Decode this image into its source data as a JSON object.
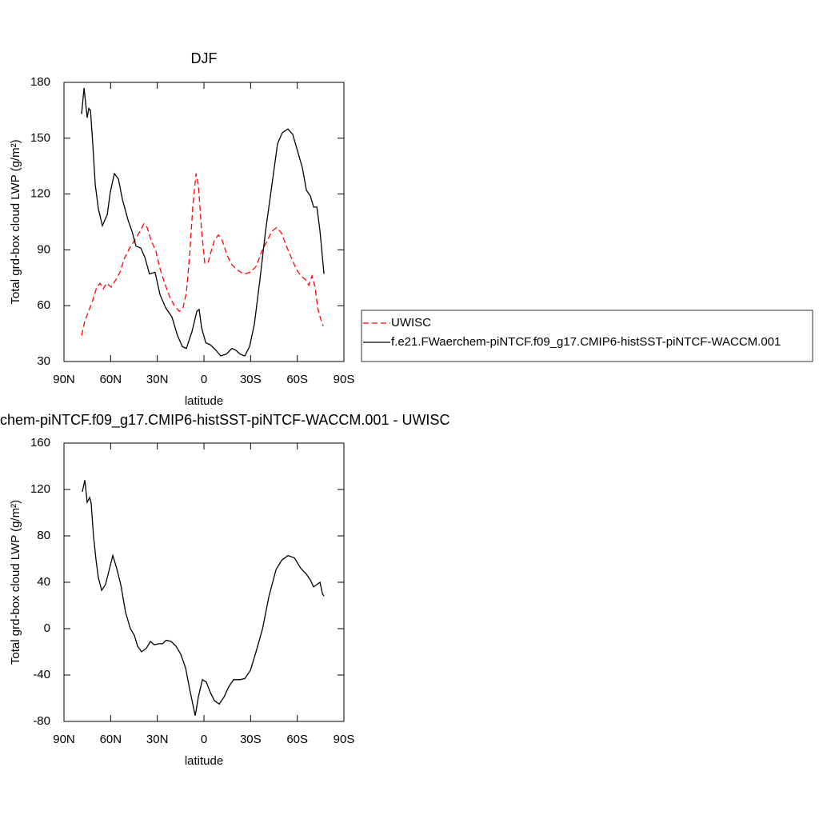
{
  "chart_data": [
    {
      "type": "line",
      "title": "DJF",
      "xlabel": "latitude",
      "ylabel": "Total grd-box cloud LWP (g/m²)",
      "xlim": [
        90,
        -90
      ],
      "xticks": [
        {
          "value": 90,
          "label": "90N"
        },
        {
          "value": 60,
          "label": "60N"
        },
        {
          "value": 30,
          "label": "30N"
        },
        0,
        {
          "value": -30,
          "label": "30S"
        },
        {
          "value": -60,
          "label": "60S"
        },
        {
          "value": -90,
          "label": "90S"
        }
      ],
      "ylim": [
        30,
        180
      ],
      "yticks": [
        30,
        60,
        90,
        120,
        150,
        180
      ],
      "legend": "right",
      "series": [
        {
          "name": "UWISC",
          "color": "#ff0000",
          "line_style": "dashed",
          "x": [
            78.7,
            76.6,
            74.6,
            71.5,
            68.9,
            66.8,
            64.8,
            62.7,
            59.6,
            56.6,
            54,
            51.4,
            47.8,
            44.7,
            41.1,
            38.6,
            36.5,
            33.9,
            30.8,
            28.3,
            25.2,
            22.1,
            19,
            15.9,
            13.4,
            11.3,
            9.2,
            7.2,
            5.1,
            3.6,
            1.5,
            -0.5,
            -2.6,
            -4.6,
            -6.7,
            -9.3,
            -11.8,
            -14.9,
            -18,
            -21.6,
            -25.7,
            -29.9,
            -33.5,
            -37.1,
            -40.1,
            -43.7,
            -46.8,
            -49.9,
            -53,
            -56.1,
            -59.2,
            -62.3,
            -65.3,
            -67.4,
            -69.5,
            -71.5,
            -73.1,
            -74.6,
            -76.7
          ],
          "values": [
            44,
            52,
            56,
            63,
            70,
            72,
            69,
            72,
            70,
            74,
            78,
            85,
            91,
            95,
            100,
            104,
            102,
            95,
            89,
            80,
            72,
            65,
            60,
            57,
            59,
            67,
            87,
            113,
            131,
            125,
            100,
            83,
            83,
            89,
            95,
            98,
            95,
            87,
            82,
            79,
            77,
            78,
            81,
            89,
            94,
            100,
            102,
            99,
            92,
            86,
            80,
            76,
            74,
            71,
            76,
            70,
            59,
            54,
            49
          ]
        },
        {
          "name": "f.e21.FWaerchem-piNTCF.f09_g17.CMIP6-histSST-piNTCF-WACCM.001",
          "color": "#000000",
          "line_style": "solid",
          "x": [
            78.7,
            77.1,
            75.1,
            74,
            73,
            71.5,
            69.9,
            67.9,
            65.3,
            62.2,
            60.2,
            57.6,
            55,
            52.4,
            48.8,
            46.3,
            43.7,
            40.6,
            38,
            35,
            31.4,
            28.3,
            24.7,
            20.6,
            17,
            13.9,
            11.3,
            7.7,
            4.6,
            3.1,
            1.5,
            -1.2,
            -4.1,
            -7.7,
            -10.8,
            -14.4,
            -18,
            -20.6,
            -23.2,
            -26.3,
            -29.3,
            -32.4,
            -36,
            -39.6,
            -43.7,
            -47.3,
            -50.4,
            -54,
            -57.1,
            -60.2,
            -63.3,
            -65.9,
            -68.4,
            -70.5,
            -72.6,
            -74.6,
            -77.2
          ],
          "values": [
            163,
            177,
            161,
            166,
            165,
            147,
            125,
            112,
            103,
            109,
            121,
            131,
            128,
            117,
            106,
            100,
            92,
            91,
            86,
            77,
            78,
            66,
            59,
            54,
            44,
            38,
            37,
            46,
            57,
            58,
            48,
            40,
            39,
            36,
            33,
            34,
            37,
            36,
            34,
            33,
            38,
            50,
            74,
            100,
            125,
            147,
            153,
            155,
            152,
            143,
            134,
            122,
            119,
            113,
            113,
            100,
            77
          ]
        }
      ]
    },
    {
      "type": "line",
      "title": "chem-piNTCF.f09_g17.CMIP6-histSST-piNTCF-WACCM.001 - UWISC",
      "xlabel": "latitude",
      "ylabel": "Total grd-box cloud LWP (g/m²)",
      "xlim": [
        90,
        -90
      ],
      "xticks": [
        {
          "value": 90,
          "label": "90N"
        },
        {
          "value": 60,
          "label": "60N"
        },
        {
          "value": 30,
          "label": "30N"
        },
        0,
        {
          "value": -30,
          "label": "30S"
        },
        {
          "value": -60,
          "label": "60S"
        },
        {
          "value": -90,
          "label": "90S"
        }
      ],
      "ylim": [
        -80,
        160
      ],
      "yticks": [
        -80,
        -40,
        0,
        40,
        80,
        120,
        160
      ],
      "color": "#000000",
      "x": [
        78.2,
        76.6,
        75.1,
        73.5,
        72.5,
        71,
        69.4,
        67.9,
        65.8,
        63.3,
        60.7,
        58.6,
        56.1,
        53.5,
        50.4,
        47.3,
        44.7,
        42.7,
        40.1,
        37.1,
        34.4,
        31.9,
        29.3,
        26.7,
        24.2,
        21.1,
        18,
        14.9,
        11.8,
        9.2,
        7.2,
        5.6,
        3.6,
        1,
        -1.5,
        -4.1,
        -6.7,
        -9.8,
        -12.9,
        -16,
        -19.1,
        -23.2,
        -26.3,
        -29.9,
        -33.5,
        -37.7,
        -41.8,
        -46.4,
        -50,
        -54,
        -58.2,
        -62.3,
        -65.9,
        -68.4,
        -70.5,
        -72.6,
        -74.6,
        -76.2,
        -77.2
      ],
      "values": [
        118,
        128,
        109,
        113,
        108,
        80,
        59,
        44,
        33,
        38,
        52,
        63,
        52,
        38,
        14,
        0,
        -6,
        -15,
        -20,
        -17,
        -11,
        -14,
        -13,
        -13,
        -10,
        -11,
        -15,
        -22,
        -34,
        -52,
        -65,
        -75,
        -59,
        -44,
        -46,
        -55,
        -62,
        -65,
        -59,
        -50,
        -44,
        -44,
        -43,
        -36,
        -20,
        0,
        28,
        51,
        59,
        63,
        61,
        52,
        47,
        42,
        36,
        38,
        40,
        30,
        28
      ]
    }
  ]
}
